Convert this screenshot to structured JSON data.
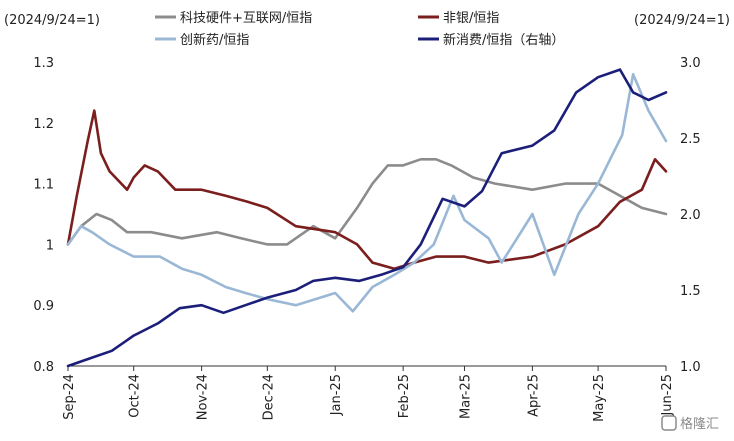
{
  "chart_data": {
    "type": "line",
    "left_axis_note": "(2024/9/24=1)",
    "right_axis_note": "(2024/9/24=1)",
    "y_left": {
      "min": 0.8,
      "max": 1.3,
      "ticks": [
        "0.8",
        "0.9",
        "1",
        "1.1",
        "1.2",
        "1.3"
      ],
      "tick_values": [
        0.8,
        0.9,
        1.0,
        1.1,
        1.2,
        1.3
      ]
    },
    "y_right": {
      "min": 1.0,
      "max": 3.0,
      "ticks": [
        "1.0",
        "1.5",
        "2.0",
        "2.5",
        "3.0"
      ],
      "tick_values": [
        1.0,
        1.5,
        2.0,
        2.5,
        3.0
      ]
    },
    "x_ticks": [
      "Sep-24",
      "Oct-24",
      "Nov-24",
      "Dec-24",
      "Jan-25",
      "Feb-25",
      "Mar-25",
      "Apr-25",
      "May-25",
      "Jun-25"
    ],
    "x_tick_dates": [
      "2024-09-24",
      "2024-10-24",
      "2024-11-24",
      "2024-12-24",
      "2025-01-24",
      "2025-02-24",
      "2025-03-24",
      "2025-04-24",
      "2025-05-24",
      "2025-06-24"
    ],
    "x_range": [
      "2024-09-24",
      "2025-06-24"
    ],
    "grid": false,
    "legend_position": "top",
    "series": [
      {
        "name": "科技硬件+互联网/恒指",
        "color": "#8c8c8c",
        "axis": "left",
        "points": [
          [
            "2024-09-24",
            1.0
          ],
          [
            "2024-09-30",
            1.03
          ],
          [
            "2024-10-07",
            1.05
          ],
          [
            "2024-10-14",
            1.04
          ],
          [
            "2024-10-21",
            1.02
          ],
          [
            "2024-11-01",
            1.02
          ],
          [
            "2024-11-15",
            1.01
          ],
          [
            "2024-12-01",
            1.02
          ],
          [
            "2024-12-12",
            1.01
          ],
          [
            "2024-12-24",
            1.0
          ],
          [
            "2025-01-02",
            1.0
          ],
          [
            "2025-01-14",
            1.03
          ],
          [
            "2025-01-24",
            1.01
          ],
          [
            "2025-02-03",
            1.06
          ],
          [
            "2025-02-10",
            1.1
          ],
          [
            "2025-02-17",
            1.13
          ],
          [
            "2025-02-24",
            1.13
          ],
          [
            "2025-03-04",
            1.14
          ],
          [
            "2025-03-11",
            1.14
          ],
          [
            "2025-03-18",
            1.13
          ],
          [
            "2025-03-28",
            1.11
          ],
          [
            "2025-04-07",
            1.1
          ],
          [
            "2025-04-24",
            1.09
          ],
          [
            "2025-05-09",
            1.1
          ],
          [
            "2025-05-24",
            1.1
          ],
          [
            "2025-06-03",
            1.08
          ],
          [
            "2025-06-13",
            1.06
          ],
          [
            "2025-06-24",
            1.05
          ]
        ]
      },
      {
        "name": "非银/恒指",
        "color": "#7b1e1e",
        "axis": "left",
        "points": [
          [
            "2024-09-24",
            1.0
          ],
          [
            "2024-09-28",
            1.08
          ],
          [
            "2024-10-03",
            1.17
          ],
          [
            "2024-10-06",
            1.22
          ],
          [
            "2024-10-09",
            1.15
          ],
          [
            "2024-10-13",
            1.12
          ],
          [
            "2024-10-21",
            1.09
          ],
          [
            "2024-10-24",
            1.11
          ],
          [
            "2024-10-29",
            1.13
          ],
          [
            "2024-11-04",
            1.12
          ],
          [
            "2024-11-12",
            1.09
          ],
          [
            "2024-11-24",
            1.09
          ],
          [
            "2024-12-05",
            1.08
          ],
          [
            "2024-12-15",
            1.07
          ],
          [
            "2024-12-24",
            1.06
          ],
          [
            "2025-01-06",
            1.03
          ],
          [
            "2025-01-24",
            1.02
          ],
          [
            "2025-02-03",
            1.0
          ],
          [
            "2025-02-10",
            0.97
          ],
          [
            "2025-02-20",
            0.96
          ],
          [
            "2025-03-01",
            0.97
          ],
          [
            "2025-03-11",
            0.98
          ],
          [
            "2025-03-24",
            0.98
          ],
          [
            "2025-04-04",
            0.97
          ],
          [
            "2025-04-24",
            0.98
          ],
          [
            "2025-05-09",
            1.0
          ],
          [
            "2025-05-24",
            1.03
          ],
          [
            "2025-06-03",
            1.07
          ],
          [
            "2025-06-13",
            1.09
          ],
          [
            "2025-06-19",
            1.14
          ],
          [
            "2025-06-24",
            1.12
          ]
        ]
      },
      {
        "name": "创新药/恒指",
        "color": "#9ab8d6",
        "axis": "left",
        "points": [
          [
            "2024-09-24",
            1.0
          ],
          [
            "2024-09-30",
            1.03
          ],
          [
            "2024-10-05",
            1.02
          ],
          [
            "2024-10-13",
            1.0
          ],
          [
            "2024-10-24",
            0.98
          ],
          [
            "2024-11-05",
            0.98
          ],
          [
            "2024-11-15",
            0.96
          ],
          [
            "2024-11-24",
            0.95
          ],
          [
            "2024-12-05",
            0.93
          ],
          [
            "2024-12-14",
            0.92
          ],
          [
            "2024-12-24",
            0.91
          ],
          [
            "2025-01-06",
            0.9
          ],
          [
            "2025-01-24",
            0.92
          ],
          [
            "2025-02-01",
            0.89
          ],
          [
            "2025-02-10",
            0.93
          ],
          [
            "2025-02-20",
            0.95
          ],
          [
            "2025-03-01",
            0.97
          ],
          [
            "2025-03-10",
            1.0
          ],
          [
            "2025-03-19",
            1.08
          ],
          [
            "2025-03-24",
            1.04
          ],
          [
            "2025-04-04",
            1.01
          ],
          [
            "2025-04-10",
            0.97
          ],
          [
            "2025-04-24",
            1.05
          ],
          [
            "2025-05-04",
            0.95
          ],
          [
            "2025-05-15",
            1.05
          ],
          [
            "2025-05-24",
            1.1
          ],
          [
            "2025-06-04",
            1.18
          ],
          [
            "2025-06-09",
            1.28
          ],
          [
            "2025-06-16",
            1.22
          ],
          [
            "2025-06-24",
            1.17
          ]
        ]
      },
      {
        "name": "新消费/恒指（右轴）",
        "color": "#1c1f7a",
        "axis": "right",
        "points": [
          [
            "2024-09-24",
            1.0
          ],
          [
            "2024-10-04",
            1.05
          ],
          [
            "2024-10-14",
            1.1
          ],
          [
            "2024-10-24",
            1.2
          ],
          [
            "2024-11-04",
            1.28
          ],
          [
            "2024-11-14",
            1.38
          ],
          [
            "2024-11-24",
            1.4
          ],
          [
            "2024-12-04",
            1.35
          ],
          [
            "2024-12-14",
            1.4
          ],
          [
            "2024-12-24",
            1.45
          ],
          [
            "2025-01-06",
            1.5
          ],
          [
            "2025-01-14",
            1.56
          ],
          [
            "2025-01-24",
            1.58
          ],
          [
            "2025-02-04",
            1.56
          ],
          [
            "2025-02-14",
            1.6
          ],
          [
            "2025-02-24",
            1.65
          ],
          [
            "2025-03-04",
            1.8
          ],
          [
            "2025-03-14",
            2.1
          ],
          [
            "2025-03-24",
            2.05
          ],
          [
            "2025-04-01",
            2.15
          ],
          [
            "2025-04-10",
            2.4
          ],
          [
            "2025-04-24",
            2.45
          ],
          [
            "2025-05-04",
            2.55
          ],
          [
            "2025-05-14",
            2.8
          ],
          [
            "2025-05-24",
            2.9
          ],
          [
            "2025-06-03",
            2.95
          ],
          [
            "2025-06-09",
            2.8
          ],
          [
            "2025-06-16",
            2.75
          ],
          [
            "2025-06-24",
            2.8
          ]
        ]
      }
    ]
  },
  "watermark": "格隆汇"
}
